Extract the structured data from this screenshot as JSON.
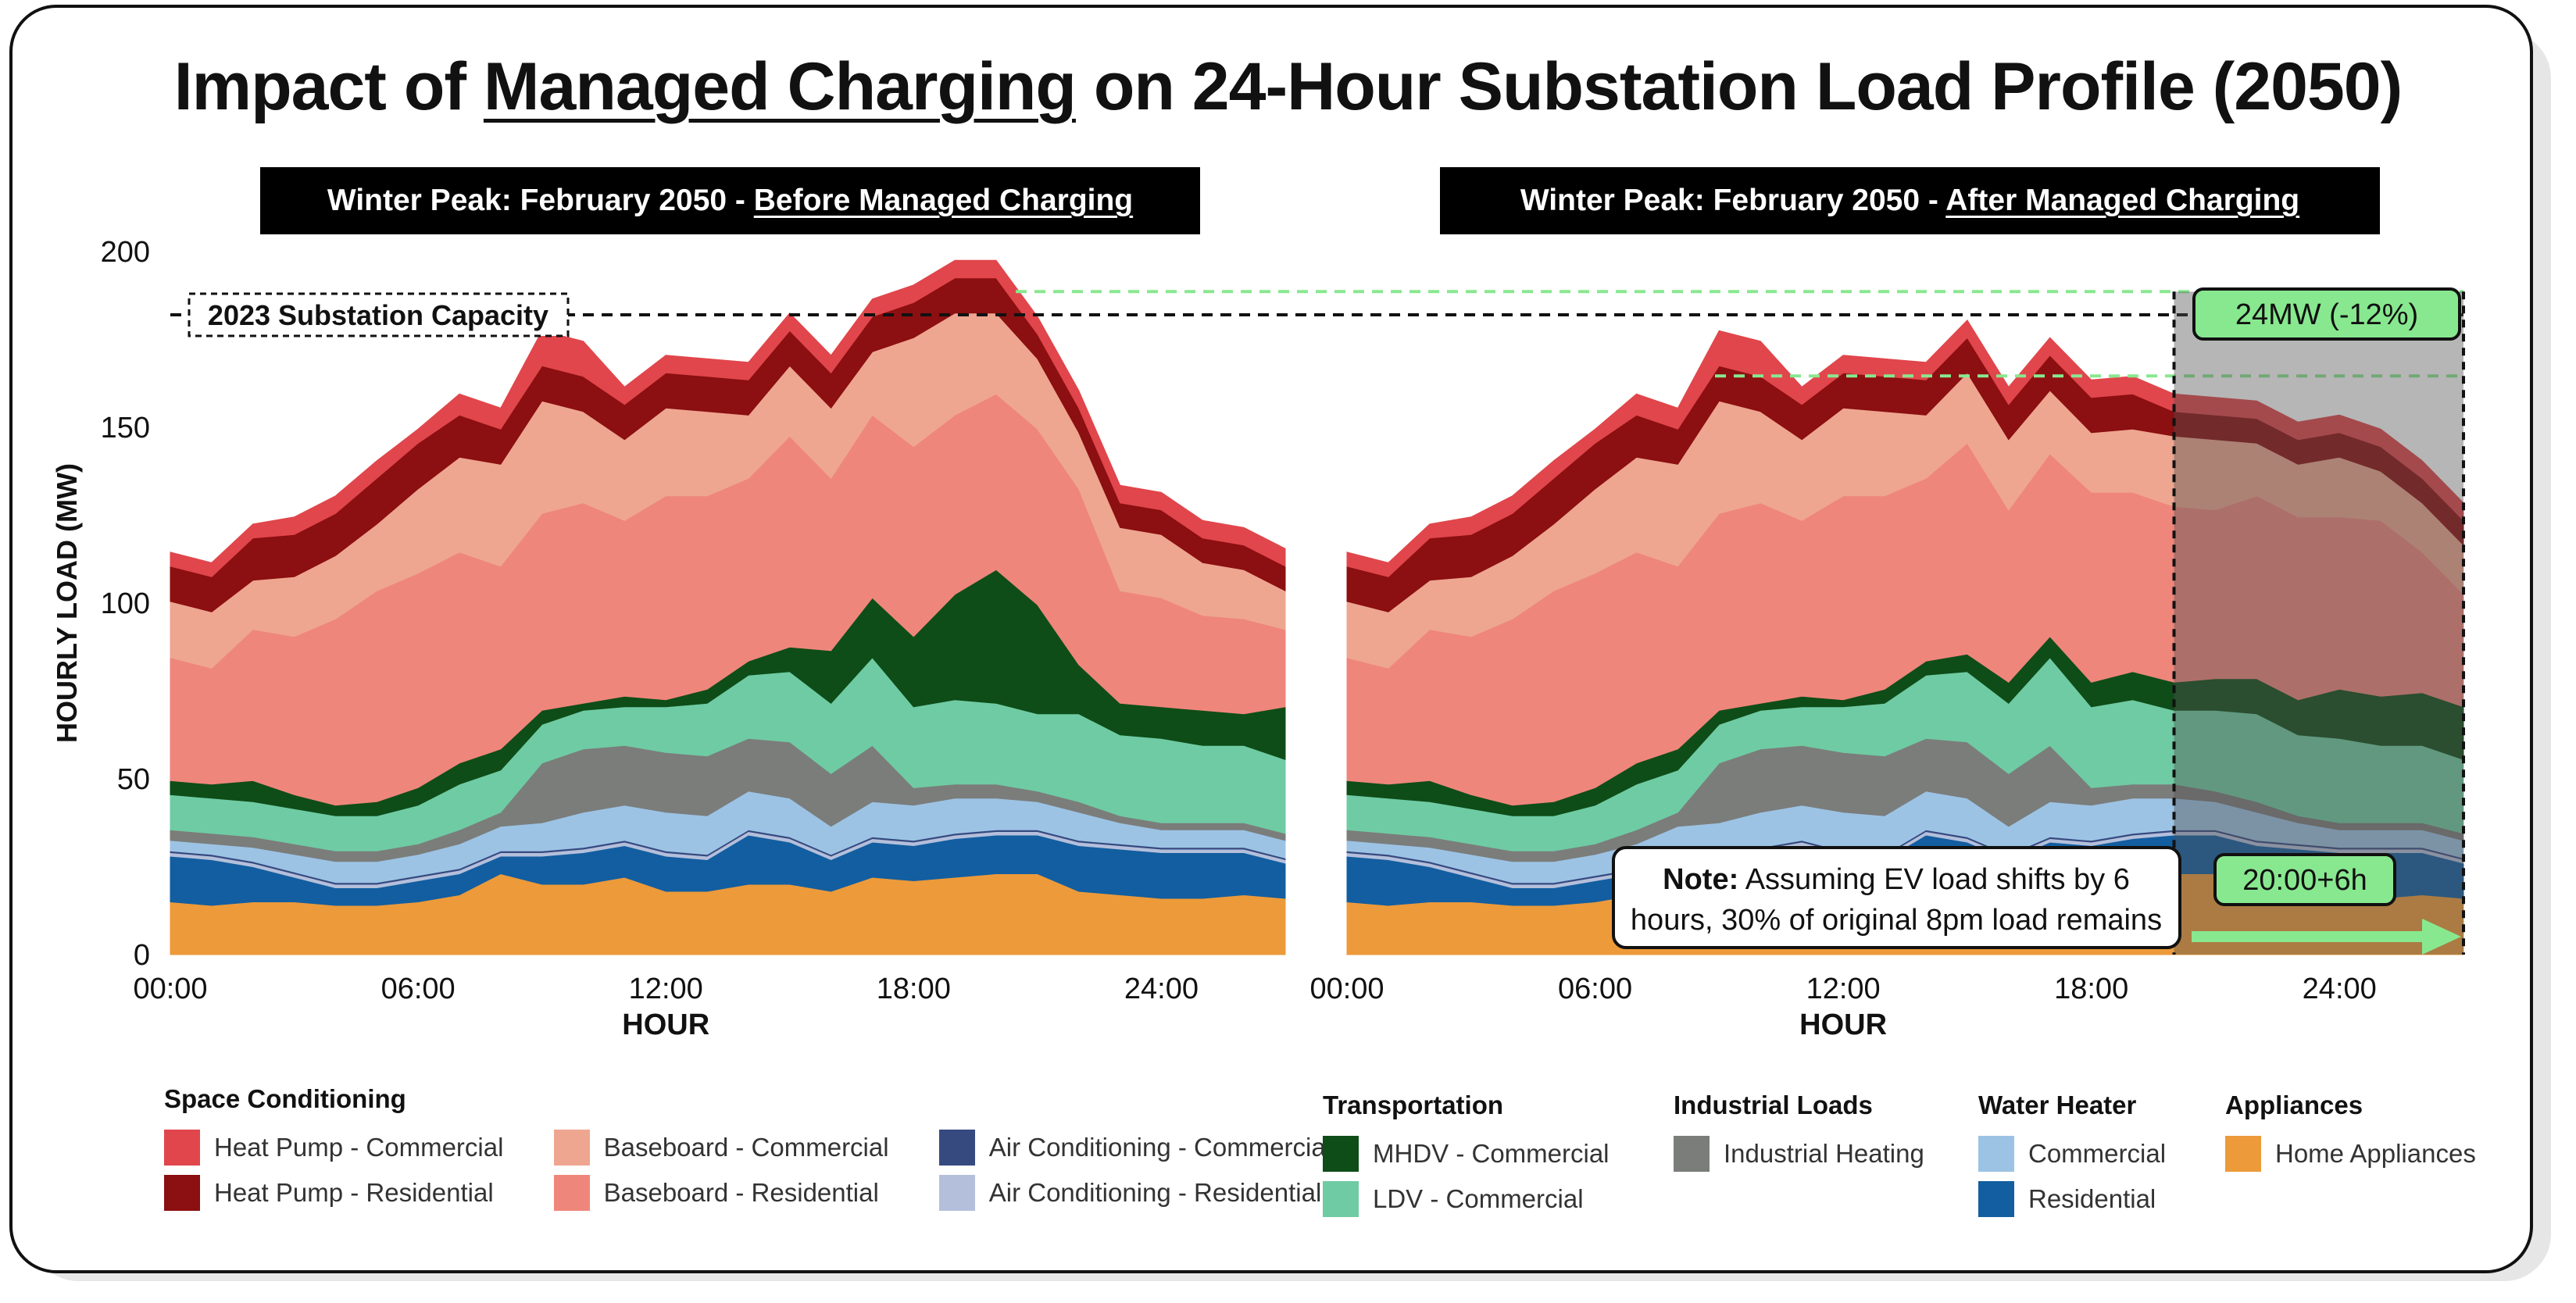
{
  "title": {
    "pre": "Impact of ",
    "underlined": "Managed Charging",
    "post": " on 24-Hour Substation Load Profile (2050)"
  },
  "panels": [
    {
      "banner_prefix": "Winter Peak: February 2050 - ",
      "banner_underlined": "Before Managed Charging"
    },
    {
      "banner_prefix": "Winter Peak: February 2050 - ",
      "banner_underlined": "After Managed Charging"
    }
  ],
  "annotations": {
    "capacity_label": "2023 Substation Capacity",
    "reduction_label": "24MW (-12%)",
    "shift_label": "20:00+6h",
    "note_bold": "Note:",
    "note_line1": " Assuming EV load shifts by 6",
    "note_line2": "hours, 30% of original 8pm load remains"
  },
  "legend": [
    {
      "heading": "Space Conditioning",
      "columns": [
        [
          {
            "label": "Heat Pump - Commercial",
            "color": "#e0464b"
          },
          {
            "label": "Heat Pump - Residential",
            "color": "#8c0f11"
          }
        ],
        [
          {
            "label": "Baseboard - Commercial",
            "color": "#eea690"
          },
          {
            "label": "Baseboard - Residential",
            "color": "#ef867b"
          }
        ],
        [
          {
            "label": "Air Conditioning - Commercial",
            "color": "#364a80"
          },
          {
            "label": "Air Conditioning - Residential",
            "color": "#b4bfdb"
          }
        ]
      ]
    },
    {
      "heading": "Transportation",
      "columns": [
        [
          {
            "label": "MHDV - Commercial",
            "color": "#0e4d18"
          },
          {
            "label": "LDV - Commercial",
            "color": "#6fcba3"
          }
        ]
      ]
    },
    {
      "heading": "Industrial Loads",
      "columns": [
        [
          {
            "label": "Industrial Heating",
            "color": "#7b7d7b"
          }
        ]
      ]
    },
    {
      "heading": "Water Heater",
      "columns": [
        [
          {
            "label": "Commercial",
            "color": "#9cc3e4"
          },
          {
            "label": "Residential",
            "color": "#125ea0"
          }
        ]
      ]
    },
    {
      "heading": "Appliances",
      "columns": [
        [
          {
            "label": "Home Appliances",
            "color": "#ec9a3a"
          }
        ]
      ]
    }
  ],
  "chart_data": [
    {
      "type": "area",
      "subtitle": "Winter Peak: February 2050 - Before Managed Charging",
      "xlabel": "HOUR",
      "ylabel": "HOURLY LOAD (MW)",
      "ylim": [
        0,
        200
      ],
      "yticks": [
        0,
        50,
        100,
        150,
        200
      ],
      "xticks": [
        "00:00",
        "06:00",
        "12:00",
        "18:00",
        "24:00"
      ],
      "x_hours": [
        0,
        1,
        2,
        3,
        4,
        5,
        6,
        7,
        8,
        9,
        10,
        11,
        12,
        13,
        14,
        15,
        16,
        17,
        18,
        19,
        20,
        21,
        22,
        23,
        24,
        25,
        26,
        27
      ],
      "capacity_mw": 182,
      "stacked": true,
      "series": [
        {
          "name": "Home Appliances",
          "color": "#ec9a3a",
          "values": [
            15,
            14,
            15,
            15,
            14,
            14,
            15,
            17,
            23,
            20,
            20,
            22,
            18,
            18,
            20,
            20,
            18,
            22,
            21,
            22,
            23,
            23,
            18,
            17,
            16,
            16,
            17,
            16
          ]
        },
        {
          "name": "Residential",
          "color": "#125ea0",
          "values": [
            13,
            13,
            10,
            7,
            5,
            5,
            6,
            6,
            5,
            8,
            9,
            9,
            10,
            9,
            14,
            12,
            9,
            10,
            10,
            11,
            11,
            11,
            13,
            13,
            13,
            13,
            12,
            10
          ]
        },
        {
          "name": "Air Conditioning - Residential",
          "color": "#b4bfdb",
          "values": [
            1,
            1,
            1,
            1,
            1,
            1,
            1,
            1,
            1,
            1,
            1,
            1,
            1,
            1,
            1,
            1,
            1,
            1,
            1,
            1,
            1,
            1,
            1,
            1,
            1,
            1,
            1,
            1
          ]
        },
        {
          "name": "Air Conditioning - Commercial",
          "color": "#364a80",
          "values": [
            0.5,
            0.5,
            0.5,
            0.5,
            0.5,
            0.5,
            0.5,
            0.5,
            0.5,
            0.5,
            0.5,
            0.5,
            0.5,
            0.5,
            0.5,
            0.5,
            0.5,
            0.5,
            0.5,
            0.5,
            0.5,
            0.5,
            0.5,
            0.5,
            0.5,
            0.5,
            0.5,
            0.5
          ]
        },
        {
          "name": "Commercial",
          "color": "#9cc3e4",
          "values": [
            3,
            3,
            4,
            5,
            6,
            6,
            6,
            7,
            7,
            8,
            10,
            10,
            11,
            11,
            11,
            11,
            8,
            10,
            10,
            10,
            9,
            8,
            8,
            6,
            5,
            5,
            5,
            5
          ]
        },
        {
          "name": "Industrial Heating",
          "color": "#7b7d7b",
          "values": [
            3,
            3,
            3,
            3,
            3,
            3,
            3,
            4,
            4,
            17,
            18,
            17,
            17,
            17,
            15,
            16,
            15,
            16,
            5,
            4,
            4,
            3,
            3,
            2,
            2,
            2,
            2,
            2
          ]
        },
        {
          "name": "LDV - Commercial",
          "color": "#6fcba3",
          "values": [
            10,
            10,
            10,
            10,
            10,
            10,
            11,
            13,
            12,
            11,
            11,
            11,
            13,
            15,
            18,
            20,
            20,
            25,
            23,
            24,
            23,
            22,
            25,
            23,
            24,
            22,
            22,
            21
          ]
        },
        {
          "name": "MHDV - Commercial",
          "color": "#0e4d18",
          "values": [
            4,
            4,
            6,
            4,
            3,
            4,
            5,
            6,
            6,
            4,
            2,
            3,
            2,
            4,
            4,
            7,
            15,
            17,
            20,
            30,
            38,
            31,
            14,
            9,
            9,
            10,
            9,
            15
          ]
        },
        {
          "name": "Baseboard - Residential",
          "color": "#ef867b",
          "values": [
            35,
            33,
            43,
            45,
            53,
            60,
            61,
            60,
            52,
            56,
            57,
            50,
            58,
            55,
            52,
            60,
            49,
            52,
            54,
            51,
            50,
            50,
            50,
            32,
            31,
            27,
            27,
            22
          ]
        },
        {
          "name": "Baseboard - Commercial",
          "color": "#eea690",
          "values": [
            16,
            16,
            14,
            17,
            18,
            19,
            24,
            27,
            29,
            32,
            26,
            23,
            25,
            24,
            18,
            20,
            20,
            18,
            31,
            29,
            23,
            20,
            16,
            18,
            18,
            15,
            14,
            11
          ]
        },
        {
          "name": "Heat Pump - Residential",
          "color": "#8c0f11",
          "values": [
            10,
            10,
            12,
            12,
            12,
            13,
            13,
            12,
            10,
            10,
            10,
            10,
            10,
            10,
            10,
            10,
            10,
            10,
            10,
            10,
            10,
            7,
            7,
            7,
            7,
            7,
            7,
            7
          ]
        },
        {
          "name": "Heat Pump - Commercial",
          "color": "#e0464b",
          "values": [
            4,
            4,
            4,
            5,
            5,
            5,
            4,
            6,
            6,
            10,
            10,
            5,
            5,
            5,
            5,
            5,
            5,
            5,
            5,
            5,
            5,
            5,
            5,
            5,
            5,
            5,
            5,
            5
          ]
        }
      ]
    },
    {
      "type": "area",
      "subtitle": "Winter Peak: February 2050 - After Managed Charging",
      "xlabel": "HOUR",
      "ylim": [
        0,
        200
      ],
      "xticks": [
        "00:00",
        "06:00",
        "12:00",
        "18:00",
        "24:00"
      ],
      "x_hours": [
        0,
        1,
        2,
        3,
        4,
        5,
        6,
        7,
        8,
        9,
        10,
        11,
        12,
        13,
        14,
        15,
        16,
        17,
        18,
        19,
        20,
        21,
        22,
        23,
        24,
        25,
        26,
        27
      ],
      "capacity_mw": 182,
      "peak_reduction": "24MW (-12%)",
      "stacked": true,
      "shaded_from_hour": 20,
      "series": [
        {
          "name": "Home Appliances",
          "color": "#ec9a3a",
          "values": [
            15,
            14,
            15,
            15,
            14,
            14,
            15,
            17,
            23,
            20,
            20,
            22,
            18,
            18,
            20,
            20,
            18,
            22,
            21,
            22,
            23,
            23,
            18,
            17,
            16,
            16,
            17,
            16
          ]
        },
        {
          "name": "Residential",
          "color": "#125ea0",
          "values": [
            13,
            13,
            10,
            7,
            5,
            5,
            6,
            6,
            5,
            8,
            9,
            9,
            10,
            9,
            14,
            12,
            9,
            10,
            10,
            11,
            11,
            11,
            13,
            13,
            13,
            13,
            12,
            10
          ]
        },
        {
          "name": "Air Conditioning - Residential",
          "color": "#b4bfdb",
          "values": [
            1,
            1,
            1,
            1,
            1,
            1,
            1,
            1,
            1,
            1,
            1,
            1,
            1,
            1,
            1,
            1,
            1,
            1,
            1,
            1,
            1,
            1,
            1,
            1,
            1,
            1,
            1,
            1
          ]
        },
        {
          "name": "Air Conditioning - Commercial",
          "color": "#364a80",
          "values": [
            0.5,
            0.5,
            0.5,
            0.5,
            0.5,
            0.5,
            0.5,
            0.5,
            0.5,
            0.5,
            0.5,
            0.5,
            0.5,
            0.5,
            0.5,
            0.5,
            0.5,
            0.5,
            0.5,
            0.5,
            0.5,
            0.5,
            0.5,
            0.5,
            0.5,
            0.5,
            0.5,
            0.5
          ]
        },
        {
          "name": "Commercial",
          "color": "#9cc3e4",
          "values": [
            3,
            3,
            4,
            5,
            6,
            6,
            6,
            7,
            7,
            8,
            10,
            10,
            11,
            11,
            11,
            11,
            8,
            10,
            10,
            10,
            9,
            8,
            8,
            6,
            5,
            5,
            5,
            5
          ]
        },
        {
          "name": "Industrial Heating",
          "color": "#7b7d7b",
          "values": [
            3,
            3,
            3,
            3,
            3,
            3,
            3,
            4,
            4,
            17,
            18,
            17,
            17,
            17,
            15,
            16,
            15,
            16,
            5,
            4,
            4,
            3,
            3,
            2,
            2,
            2,
            2,
            2
          ]
        },
        {
          "name": "LDV - Commercial",
          "color": "#6fcba3",
          "values": [
            10,
            10,
            10,
            10,
            10,
            10,
            11,
            13,
            12,
            11,
            11,
            11,
            13,
            15,
            18,
            20,
            20,
            25,
            23,
            24,
            21,
            23,
            25,
            23,
            24,
            22,
            22,
            21
          ]
        },
        {
          "name": "MHDV - Commercial",
          "color": "#0e4d18",
          "values": [
            4,
            4,
            6,
            4,
            3,
            4,
            5,
            6,
            6,
            4,
            2,
            3,
            2,
            4,
            4,
            5,
            6,
            6,
            7,
            8,
            8,
            9,
            10,
            10,
            14,
            14,
            15,
            15
          ]
        },
        {
          "name": "Baseboard - Residential",
          "color": "#ef867b",
          "values": [
            35,
            33,
            43,
            45,
            53,
            60,
            61,
            60,
            52,
            56,
            57,
            50,
            58,
            55,
            52,
            60,
            49,
            52,
            54,
            51,
            50,
            48,
            52,
            52,
            49,
            50,
            40,
            32
          ]
        },
        {
          "name": "Baseboard - Commercial",
          "color": "#eea690",
          "values": [
            16,
            16,
            14,
            17,
            18,
            19,
            24,
            27,
            29,
            32,
            26,
            23,
            25,
            24,
            18,
            20,
            20,
            18,
            17,
            18,
            20,
            20,
            15,
            15,
            17,
            14,
            14,
            14
          ]
        },
        {
          "name": "Heat Pump - Residential",
          "color": "#8c0f11",
          "values": [
            10,
            10,
            12,
            12,
            12,
            13,
            13,
            12,
            10,
            10,
            10,
            10,
            10,
            10,
            10,
            10,
            10,
            10,
            10,
            10,
            7,
            7,
            7,
            7,
            7,
            7,
            7,
            7
          ]
        },
        {
          "name": "Heat Pump - Commercial",
          "color": "#e0464b",
          "values": [
            4,
            4,
            4,
            5,
            5,
            5,
            4,
            6,
            6,
            10,
            10,
            5,
            5,
            5,
            5,
            5,
            5,
            5,
            5,
            5,
            5,
            5,
            5,
            5,
            5,
            5,
            5,
            5
          ]
        }
      ]
    }
  ]
}
